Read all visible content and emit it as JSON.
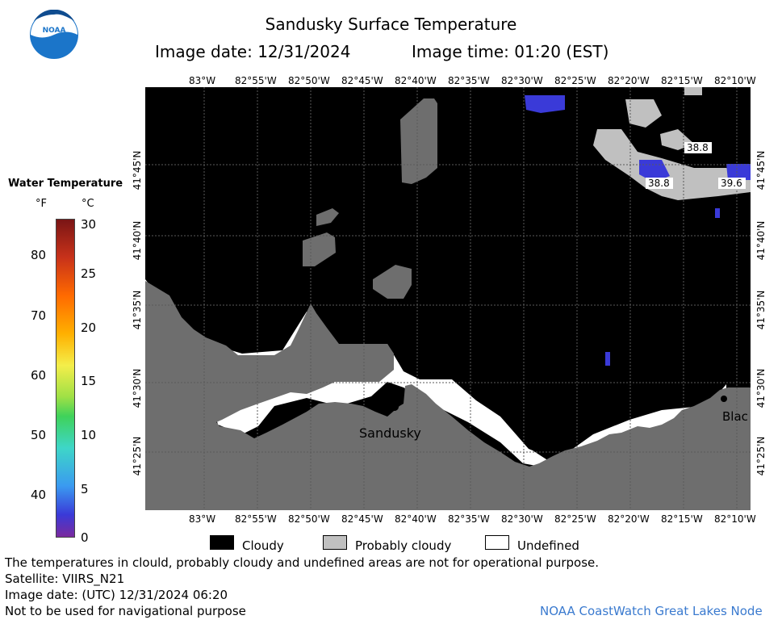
{
  "header": {
    "title": "Sandusky Surface Temperature",
    "image_date": "Image date: 12/31/2024",
    "image_time": "Image time: 01:20 (EST)"
  },
  "logo": {
    "text": "NOAA",
    "icon": "noaa-logo-icon"
  },
  "colorbar": {
    "title": "Water Temperature",
    "unit_f": "°F",
    "unit_c": "°C",
    "f_ticks": [
      "80",
      "70",
      "60",
      "50",
      "40"
    ],
    "c_ticks": [
      "30",
      "25",
      "20",
      "15",
      "10",
      "5",
      "0"
    ]
  },
  "map": {
    "lon_labels": [
      "83°W",
      "82°55'W",
      "82°50'W",
      "82°45'W",
      "82°40'W",
      "82°35'W",
      "82°30'W",
      "82°25'W",
      "82°20'W",
      "82°15'W",
      "82°10'W"
    ],
    "lat_labels": [
      "41°45'N",
      "41°40'N",
      "41°35'N",
      "41°30'N",
      "41°25'N"
    ],
    "place_sandusky": "Sandusky",
    "place_blac": "Blac",
    "temp_labels": [
      "38.8",
      "39.6",
      "38.8"
    ],
    "colors": {
      "cloud": "#000000",
      "probably_cloudy": "#c0c0c0",
      "land": "#6e6e6e",
      "undefined": "#ffffff",
      "water_cold": "#3a3ad8"
    }
  },
  "legend": {
    "cloudy": "Cloudy",
    "probably_cloudy": "Probably cloudy",
    "undefined": "Undefined"
  },
  "footer": {
    "disclaimer": "The temperatures in clould, probably cloudy and undefined areas are not for operational purpose.",
    "satellite": "Satellite: VIIRS_N21",
    "utc_date": "Image date: (UTC) 12/31/2024  06:20",
    "nav_warning": "Not to be used for navigational purpose",
    "credit": "NOAA CoastWatch Great Lakes Node"
  }
}
